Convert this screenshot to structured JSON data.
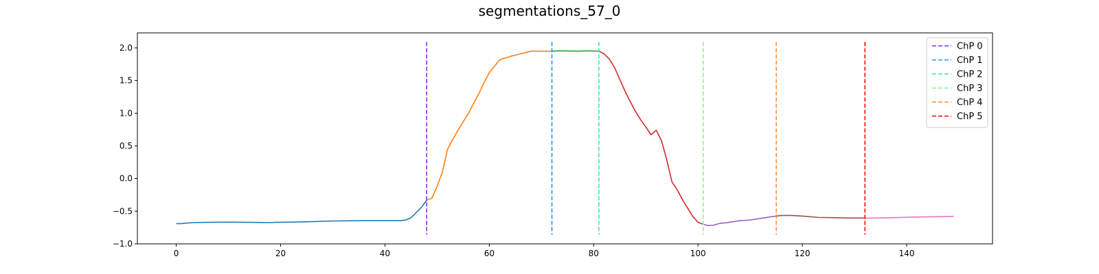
{
  "chart_data": {
    "type": "line",
    "title": "segmentations_57_0",
    "xlabel": "",
    "ylabel": "",
    "xlim": [
      -7.45,
      156.45
    ],
    "ylim": [
      -1.0,
      2.23
    ],
    "xticks": [
      0,
      20,
      40,
      60,
      80,
      100,
      120,
      140
    ],
    "yticks": [
      -1.0,
      -0.5,
      0.0,
      0.5,
      1.0,
      1.5,
      2.0
    ],
    "xtick_labels": [
      "0",
      "20",
      "40",
      "60",
      "80",
      "100",
      "120",
      "140"
    ],
    "ytick_labels": [
      "−1.0",
      "−0.5",
      "0.0",
      "0.5",
      "1.0",
      "1.5",
      "2.0"
    ],
    "grid": false,
    "legend_position": "top-right",
    "series": [
      {
        "color": "#1f77b4",
        "points": [
          [
            0,
            -0.69
          ],
          [
            1,
            -0.69
          ],
          [
            3,
            -0.675
          ],
          [
            6,
            -0.67
          ],
          [
            10,
            -0.668
          ],
          [
            14,
            -0.67
          ],
          [
            18,
            -0.675
          ],
          [
            19,
            -0.67
          ],
          [
            22,
            -0.668
          ],
          [
            26,
            -0.66
          ],
          [
            30,
            -0.65
          ],
          [
            35,
            -0.645
          ],
          [
            40,
            -0.645
          ],
          [
            43,
            -0.645
          ],
          [
            44,
            -0.635
          ],
          [
            45,
            -0.6
          ],
          [
            46,
            -0.52
          ],
          [
            47,
            -0.44
          ],
          [
            48,
            -0.33
          ]
        ]
      },
      {
        "color": "#ff7f0e",
        "points": [
          [
            48,
            -0.33
          ],
          [
            49,
            -0.3
          ],
          [
            50,
            -0.12
          ],
          [
            51,
            0.1
          ],
          [
            52,
            0.45
          ],
          [
            53,
            0.6
          ],
          [
            54,
            0.74
          ],
          [
            55,
            0.87
          ],
          [
            56,
            1.0
          ],
          [
            57,
            1.15
          ],
          [
            58,
            1.3
          ],
          [
            59,
            1.47
          ],
          [
            60,
            1.62
          ],
          [
            61,
            1.72
          ],
          [
            62,
            1.82
          ],
          [
            64,
            1.87
          ],
          [
            66,
            1.91
          ],
          [
            68,
            1.95
          ],
          [
            70,
            1.95
          ],
          [
            72,
            1.95
          ]
        ]
      },
      {
        "color": "#2ca02c",
        "points": [
          [
            72,
            1.95
          ],
          [
            74,
            1.955
          ],
          [
            77,
            1.95
          ],
          [
            79,
            1.955
          ],
          [
            81,
            1.95
          ]
        ]
      },
      {
        "color": "#d62728",
        "points": [
          [
            81,
            1.95
          ],
          [
            82,
            1.91
          ],
          [
            83,
            1.83
          ],
          [
            84,
            1.7
          ],
          [
            85,
            1.52
          ],
          [
            86,
            1.34
          ],
          [
            87,
            1.18
          ],
          [
            88,
            1.03
          ],
          [
            89,
            0.9
          ],
          [
            90,
            0.79
          ],
          [
            91,
            0.67
          ],
          [
            92,
            0.74
          ],
          [
            93,
            0.58
          ],
          [
            94,
            0.29
          ],
          [
            95,
            -0.05
          ],
          [
            96,
            -0.17
          ],
          [
            97,
            -0.32
          ],
          [
            98,
            -0.45
          ],
          [
            99,
            -0.58
          ],
          [
            100,
            -0.67
          ],
          [
            101,
            -0.7
          ]
        ]
      },
      {
        "color": "#9467bd",
        "points": [
          [
            101,
            -0.7
          ],
          [
            102,
            -0.72
          ],
          [
            103,
            -0.715
          ],
          [
            104,
            -0.69
          ],
          [
            106,
            -0.67
          ],
          [
            108,
            -0.645
          ],
          [
            110,
            -0.635
          ],
          [
            112,
            -0.61
          ],
          [
            114,
            -0.585
          ],
          [
            115,
            -0.575
          ]
        ]
      },
      {
        "color": "#8c564b",
        "points": [
          [
            115,
            -0.575
          ],
          [
            116,
            -0.565
          ],
          [
            118,
            -0.565
          ],
          [
            120,
            -0.575
          ],
          [
            123,
            -0.595
          ],
          [
            126,
            -0.6
          ],
          [
            129,
            -0.605
          ],
          [
            132,
            -0.605
          ]
        ]
      },
      {
        "color": "#e377c2",
        "points": [
          [
            132,
            -0.605
          ],
          [
            134,
            -0.605
          ],
          [
            137,
            -0.6
          ],
          [
            141,
            -0.59
          ],
          [
            145,
            -0.585
          ],
          [
            149,
            -0.58
          ]
        ]
      }
    ],
    "changepoints": [
      {
        "name": "ChP 0",
        "x": 48,
        "color": "#8a2be2"
      },
      {
        "name": "ChP 1",
        "x": 72,
        "color": "#1e90ff"
      },
      {
        "name": "ChP 2",
        "x": 81,
        "color": "#40e0b0"
      },
      {
        "name": "ChP 3",
        "x": 101,
        "color": "#90ee90"
      },
      {
        "name": "ChP 4",
        "x": 115,
        "color": "#ff8c3a"
      },
      {
        "name": "ChP 5",
        "x": 132,
        "color": "#ff0000"
      }
    ]
  }
}
